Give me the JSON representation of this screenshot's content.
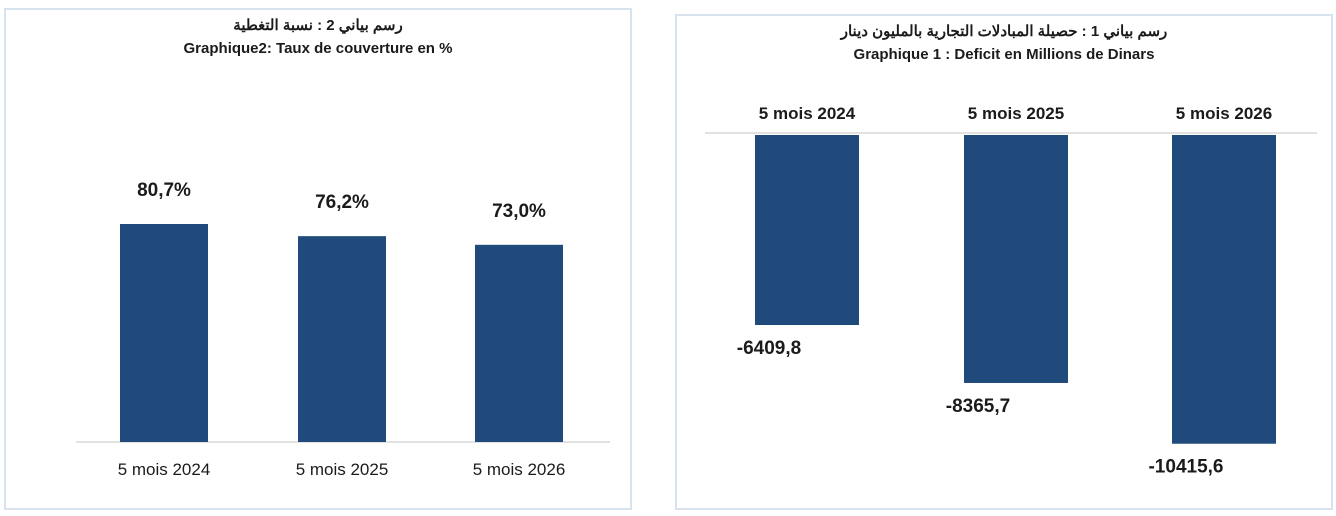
{
  "chart_data": [
    {
      "type": "bar",
      "title_ar": "رسم بياني 2 : نسبة التغطية",
      "title": "Graphique2: Taux de couverture en %",
      "categories": [
        "5 mois 2024",
        "5 mois 2025",
        "5 mois 2026"
      ],
      "values": [
        80.7,
        76.2,
        73.0
      ],
      "data_labels": [
        "80,7%",
        "76,2%",
        "73,0%"
      ],
      "unit": "%",
      "grid": false,
      "legend": "none"
    },
    {
      "type": "bar",
      "title_ar": "رسم بياني 1 : حصيلة المبادلات التجارية بالمليون دينار",
      "title": "Graphique 1 : Deficit en Millions de Dinars",
      "categories": [
        "5 mois 2024",
        "5 mois 2025",
        "5 mois 2026"
      ],
      "values": [
        -6409.8,
        -8365.7,
        -10415.6
      ],
      "data_labels": [
        "-6409,8",
        "-8365,7",
        "-10415,6"
      ],
      "axis_position": "top",
      "grid": false,
      "legend": "none"
    }
  ],
  "colors": {
    "bar": "#1f4a7b",
    "panel_border": "#d7e3ef"
  }
}
